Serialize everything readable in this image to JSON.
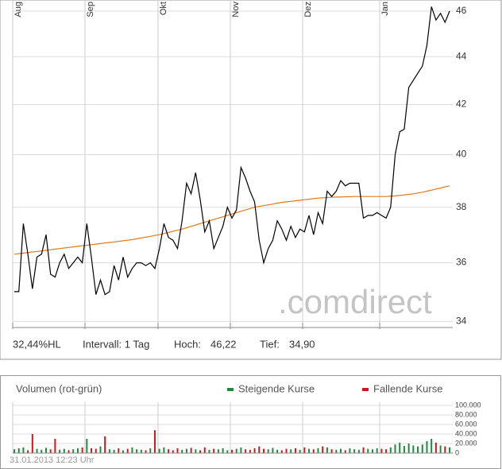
{
  "chart_data": [
    {
      "type": "line",
      "log": true,
      "grid": true,
      "categories": [
        "Aug",
        null,
        null,
        null,
        null,
        null,
        null,
        null,
        null,
        null,
        null,
        null,
        null,
        null,
        null,
        null,
        "Sep",
        null,
        null,
        null,
        null,
        null,
        null,
        null,
        null,
        null,
        null,
        null,
        null,
        null,
        null,
        null,
        "Okt",
        null,
        null,
        null,
        null,
        null,
        null,
        null,
        null,
        null,
        null,
        null,
        null,
        null,
        null,
        null,
        "Nov",
        null,
        null,
        null,
        null,
        null,
        null,
        null,
        null,
        null,
        null,
        null,
        null,
        null,
        null,
        null,
        "Dez",
        null,
        null,
        null,
        null,
        null,
        null,
        null,
        null,
        null,
        null,
        null,
        null,
        null,
        null,
        null,
        null,
        "Jan",
        null,
        null,
        null,
        null,
        null,
        null,
        null,
        null,
        null,
        null,
        null,
        null,
        null,
        null,
        null
      ],
      "series": [
        {
          "color": "#000000",
          "values": [
            35.0,
            35.0,
            37.4,
            36.3,
            35.1,
            36.2,
            36.3,
            37.0,
            35.6,
            35.5,
            36.0,
            36.3,
            35.8,
            36.0,
            36.2,
            36.0,
            37.4,
            36.2,
            34.9,
            35.4,
            34.9,
            35.0,
            35.9,
            35.4,
            36.2,
            35.5,
            35.8,
            36.0,
            36.0,
            35.9,
            36.0,
            35.8,
            36.5,
            37.4,
            36.9,
            36.8,
            36.5,
            37.5,
            38.9,
            38.5,
            39.3,
            38.3,
            37.1,
            37.5,
            36.5,
            36.9,
            37.3,
            38.0,
            37.6,
            37.9,
            39.5,
            39.1,
            38.6,
            38.2,
            36.8,
            36.0,
            36.5,
            36.8,
            37.5,
            37.2,
            36.8,
            37.3,
            36.9,
            37.2,
            37.1,
            37.7,
            37.0,
            37.8,
            37.4,
            38.6,
            38.4,
            38.6,
            39.0,
            38.8,
            38.9,
            38.9,
            38.9,
            37.6,
            37.7,
            37.7,
            37.8,
            37.7,
            37.6,
            38.0,
            40.0,
            40.9,
            41.0,
            42.7,
            43.0,
            43.3,
            43.6,
            44.5,
            46.2,
            45.6,
            45.9,
            45.5,
            46.0
          ]
        },
        {
          "color": "#e07b1a",
          "values": [
            36.3,
            36.32,
            36.34,
            36.36,
            36.38,
            36.4,
            36.42,
            36.44,
            36.46,
            36.48,
            36.5,
            36.52,
            36.54,
            36.56,
            36.58,
            36.6,
            36.62,
            36.64,
            36.66,
            36.68,
            36.7,
            36.72,
            36.74,
            36.76,
            36.78,
            36.8,
            36.82,
            36.85,
            36.88,
            36.91,
            36.94,
            36.97,
            37.0,
            37.04,
            37.08,
            37.12,
            37.16,
            37.2,
            37.25,
            37.3,
            37.35,
            37.4,
            37.45,
            37.5,
            37.55,
            37.6,
            37.65,
            37.7,
            37.75,
            37.8,
            37.85,
            37.9,
            37.95,
            38.0,
            38.03,
            38.06,
            38.09,
            38.12,
            38.15,
            38.18,
            38.2,
            38.22,
            38.24,
            38.26,
            38.28,
            38.3,
            38.32,
            38.34,
            38.35,
            38.36,
            38.37,
            38.38,
            38.38,
            38.39,
            38.39,
            38.4,
            38.4,
            38.4,
            38.4,
            38.4,
            38.4,
            38.4,
            38.4,
            38.41,
            38.42,
            38.44,
            38.46,
            38.48,
            38.5,
            38.53,
            38.56,
            38.6,
            38.64,
            38.68,
            38.72,
            38.76,
            38.8
          ]
        }
      ],
      "ylim": [
        33.8,
        46.5
      ],
      "yticks": [
        34,
        36,
        38,
        40,
        42,
        44,
        46
      ],
      "watermark": ".comdirect",
      "footer": [
        "32,44%HL",
        "Intervall: 1 Tag",
        "Hoch:",
        "46,22",
        "Tief:",
        "34,90"
      ]
    },
    {
      "type": "bar",
      "title": "Volumen (rot-grün)",
      "grid": true,
      "series": [
        {
          "name": "Steigende Kurse",
          "color": "#1f8a3c",
          "values": [
            8000,
            10000,
            12000,
            null,
            null,
            9000,
            7000,
            11000,
            null,
            null,
            7000,
            9000,
            null,
            8000,
            10000,
            null,
            30000,
            null,
            null,
            14000,
            null,
            8000,
            7000,
            null,
            6000,
            null,
            12000,
            8000,
            7000,
            null,
            10000,
            null,
            9000,
            12000,
            null,
            null,
            null,
            7000,
            9000,
            null,
            8000,
            null,
            null,
            7000,
            null,
            8000,
            10000,
            6000,
            null,
            9000,
            12000,
            null,
            null,
            null,
            null,
            null,
            8000,
            11000,
            7000,
            null,
            null,
            8000,
            null,
            7000,
            null,
            9000,
            null,
            10000,
            null,
            12000,
            null,
            7000,
            9000,
            null,
            10000,
            8000,
            7000,
            null,
            9000,
            8000,
            10000,
            null,
            null,
            12000,
            18000,
            22000,
            15000,
            20000,
            16000,
            14000,
            18000,
            25000,
            30000,
            null,
            16000,
            null,
            12000
          ]
        },
        {
          "name": "Fallende Kurse",
          "color": "#cc1a1a",
          "values": [
            null,
            null,
            null,
            6000,
            40000,
            null,
            null,
            null,
            8000,
            30000,
            null,
            null,
            6000,
            null,
            null,
            12000,
            null,
            10000,
            9000,
            null,
            35000,
            null,
            null,
            10000,
            null,
            9000,
            null,
            null,
            null,
            6000,
            null,
            48000,
            null,
            null,
            8000,
            6000,
            10000,
            null,
            null,
            11000,
            null,
            6000,
            12000,
            null,
            9000,
            null,
            null,
            null,
            7000,
            null,
            null,
            8000,
            7000,
            10000,
            14000,
            9000,
            null,
            null,
            null,
            6000,
            9000,
            null,
            10000,
            null,
            12000,
            null,
            8000,
            null,
            14000,
            null,
            8000,
            null,
            null,
            6000,
            null,
            null,
            null,
            12000,
            null,
            null,
            null,
            9000,
            8000,
            null,
            null,
            null,
            null,
            null,
            null,
            null,
            null,
            null,
            null,
            22000,
            null,
            14000,
            null
          ]
        }
      ],
      "ylim": [
        0,
        100000
      ],
      "yticks": [
        0,
        {
          "value": 20000,
          "label": "20.000"
        },
        {
          "value": 40000,
          "label": "40.000"
        },
        {
          "value": 60000,
          "label": "60.000"
        },
        {
          "value": 80000,
          "label": "80.000"
        },
        {
          "value": 100000,
          "label": "100.000"
        }
      ],
      "timestamp": "31.01.2013 12:23 Uhr"
    }
  ]
}
